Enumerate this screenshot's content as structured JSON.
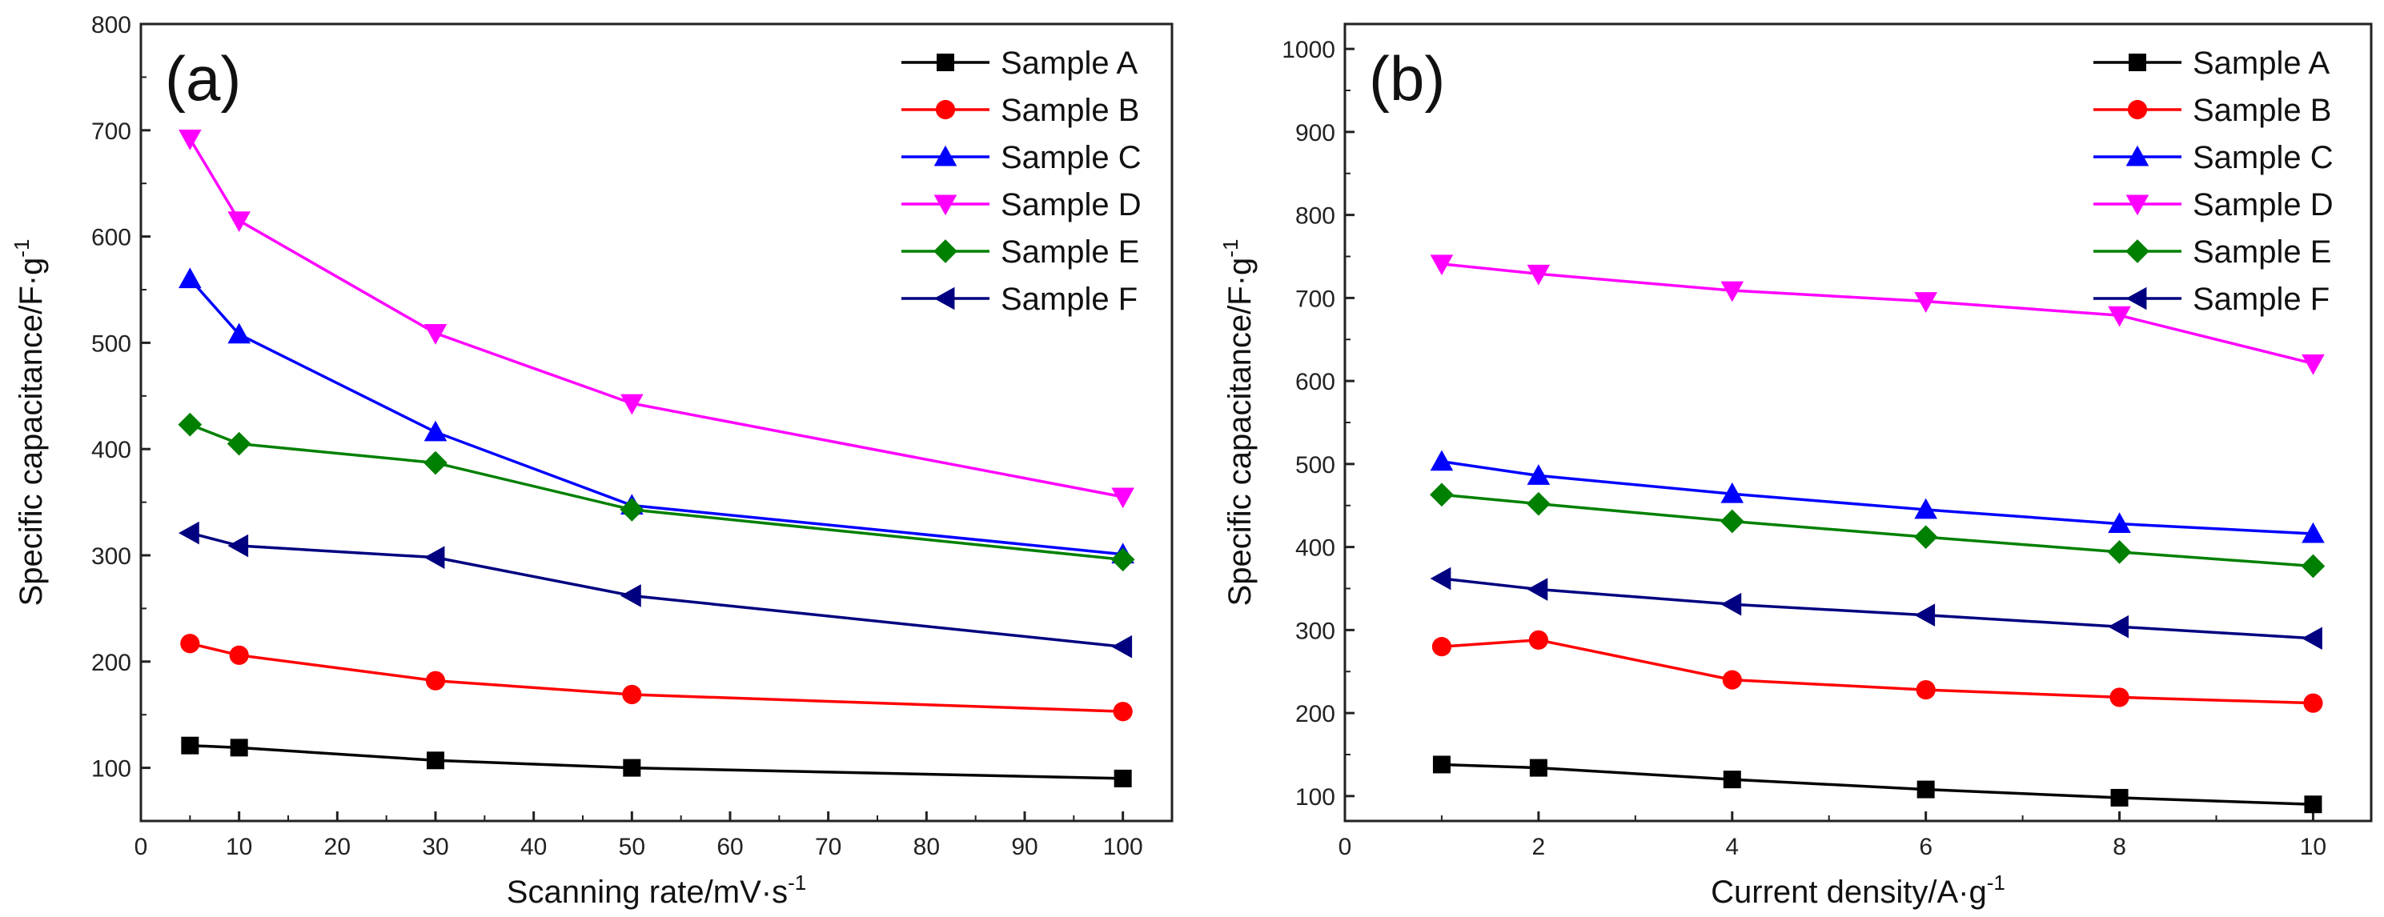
{
  "chart_data": [
    {
      "type": "line",
      "panel_label": "(a)",
      "xlabel": "Scanning rate/mV·s",
      "xlabel_sup": "-1",
      "ylabel": "Specific capacitance/F·g",
      "ylabel_sup": "-1",
      "xlim": [
        0,
        105
      ],
      "ylim": [
        50,
        800
      ],
      "xticks": [
        0,
        10,
        20,
        30,
        40,
        50,
        60,
        70,
        80,
        90,
        100
      ],
      "yticks": [
        100,
        200,
        300,
        400,
        500,
        600,
        700,
        800
      ],
      "legend_position": "top-right",
      "x": [
        5,
        10,
        30,
        50,
        100
      ],
      "series": [
        {
          "name": "Sample A",
          "color": "#000000",
          "marker": "square",
          "values": [
            121,
            119,
            107,
            100,
            90
          ]
        },
        {
          "name": "Sample B",
          "color": "#ff0000",
          "marker": "circle",
          "values": [
            217,
            206,
            182,
            169,
            153
          ]
        },
        {
          "name": "Sample C",
          "color": "#0000ff",
          "marker": "triangle-up",
          "values": [
            560,
            508,
            416,
            347,
            301
          ]
        },
        {
          "name": "Sample D",
          "color": "#ff00ff",
          "marker": "triangle-down",
          "values": [
            692,
            615,
            509,
            443,
            355
          ]
        },
        {
          "name": "Sample E",
          "color": "#008000",
          "marker": "diamond",
          "values": [
            423,
            405,
            387,
            343,
            296
          ]
        },
        {
          "name": "Sample F",
          "color": "#000080",
          "marker": "triangle-left",
          "values": [
            321,
            309,
            298,
            262,
            214
          ]
        }
      ]
    },
    {
      "type": "line",
      "panel_label": "(b)",
      "xlabel": "Current density/A·g",
      "xlabel_sup": "-1",
      "ylabel": "Specific capacitance/F·g",
      "ylabel_sup": "-1",
      "xlim": [
        0,
        10.6
      ],
      "ylim": [
        70,
        1030
      ],
      "xticks": [
        0,
        2,
        4,
        6,
        8,
        10
      ],
      "yticks": [
        100,
        200,
        300,
        400,
        500,
        600,
        700,
        800,
        900,
        1000
      ],
      "legend_position": "top-right",
      "x": [
        1,
        2,
        4,
        6,
        8,
        10
      ],
      "series": [
        {
          "name": "Sample A",
          "color": "#000000",
          "marker": "square",
          "values": [
            138,
            134,
            120,
            108,
            98,
            90
          ]
        },
        {
          "name": "Sample B",
          "color": "#ff0000",
          "marker": "circle",
          "values": [
            280,
            288,
            240,
            228,
            219,
            212
          ]
        },
        {
          "name": "Sample C",
          "color": "#0000ff",
          "marker": "triangle-up",
          "values": [
            503,
            486,
            464,
            445,
            428,
            416
          ]
        },
        {
          "name": "Sample D",
          "color": "#ff00ff",
          "marker": "triangle-down",
          "values": [
            741,
            729,
            709,
            696,
            679,
            621
          ]
        },
        {
          "name": "Sample E",
          "color": "#008000",
          "marker": "diamond",
          "values": [
            463,
            452,
            431,
            412,
            394,
            377
          ]
        },
        {
          "name": "Sample F",
          "color": "#000080",
          "marker": "triangle-left",
          "values": [
            362,
            349,
            331,
            318,
            304,
            290
          ]
        }
      ]
    }
  ]
}
